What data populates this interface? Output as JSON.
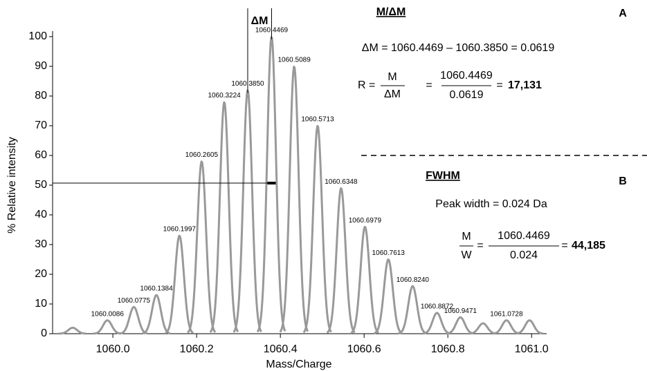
{
  "chart_data": {
    "type": "spectrum",
    "x_label": "Mass/Charge",
    "y_label": "% Relative intensity",
    "color": "#999999",
    "x": [
      1059.904,
      1059.987,
      1060.05,
      1060.104,
      1060.159,
      1060.212,
      1060.266,
      1060.322,
      1060.379,
      1060.433,
      1060.489,
      1060.545,
      1060.602,
      1060.658,
      1060.716,
      1060.774,
      1060.83,
      1060.884,
      1060.94,
      1060.995
    ],
    "values": [
      2,
      4.5,
      9,
      13,
      33,
      58,
      78,
      82,
      100,
      90,
      70,
      49,
      36,
      25,
      16,
      7,
      5.5,
      3.5,
      4.5,
      4.5
    ],
    "labels": [
      null,
      "1060.0086",
      "1060.0775",
      "1060.1384",
      "1060.1997",
      "1060.2605",
      "1060.3224",
      "1060.3850",
      "1060.4469",
      "1060.5089",
      "1060.5713",
      "1060.6348",
      "1060.6979",
      "1060.7613",
      "1060.8240",
      "1060.8872",
      "1060.9471",
      null,
      "1061.0728",
      null
    ],
    "xlim": [
      1059.856,
      1061.036
    ],
    "xticks": [
      {
        "value": 1060,
        "label": "1060.0"
      },
      {
        "value": 1060.2,
        "label": "1060.2"
      },
      {
        "value": 1060.4,
        "label": "1060.4"
      },
      {
        "value": 1060.6,
        "label": "1060.6"
      },
      {
        "value": 1060.8,
        "label": "1060.8"
      },
      {
        "value": 1061,
        "label": "1061.0"
      }
    ],
    "ylim": [
      0,
      100
    ],
    "yticks": [
      0,
      10,
      20,
      30,
      40,
      50,
      60,
      70,
      80,
      90,
      100
    ],
    "half_max": 50.7,
    "delta_m_label": "ΔM",
    "panel_a": {
      "heading": "M/ΔM",
      "letter": "A",
      "equation": "ΔM = 1060.4469 – 1060.3850 = 0.0619",
      "r": "R =",
      "num1": "M",
      "den1": "ΔM",
      "eq": "=",
      "num2": "1060.4469",
      "den2": "0.0619",
      "result_eq": "=",
      "result": "17,131"
    },
    "panel_b": {
      "heading": "FWHM",
      "letter": "B",
      "width": "Peak width = 0.024 Da",
      "num1": "M",
      "den1": "W",
      "eq": "=",
      "num2": "1060.4469",
      "den2": "0.024",
      "result_eq": "=",
      "result": "44,185"
    }
  }
}
